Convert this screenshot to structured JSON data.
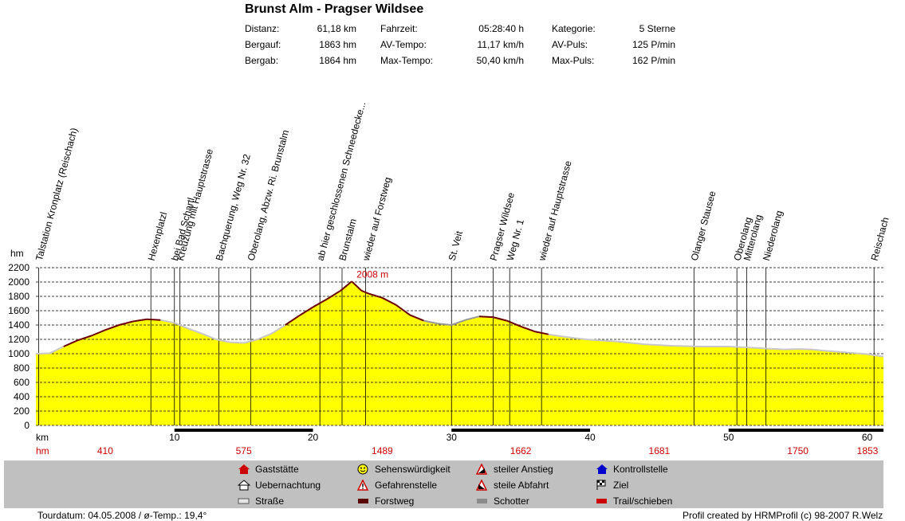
{
  "title": "Brunst Alm - Pragser Wildsee",
  "stats": [
    {
      "label": "Distanz:",
      "value": "61,18 km"
    },
    {
      "label": "Bergauf:",
      "value": "1863 hm"
    },
    {
      "label": "Bergab:",
      "value": "1864 hm"
    },
    {
      "label": "Fahrzeit:",
      "value": "05:28:40 h"
    },
    {
      "label": "AV-Tempo:",
      "value": "11,17 km/h"
    },
    {
      "label": "Max-Tempo:",
      "value": "50,40 km/h"
    },
    {
      "label": "Kategorie:",
      "value": "5 Sterne"
    },
    {
      "label": "AV-Puls:",
      "value": "125 P/min"
    },
    {
      "label": "Max-Puls:",
      "value": "162 P/min"
    }
  ],
  "chart_data": {
    "type": "area",
    "ylabel": "hm",
    "xlabel": "km",
    "ylim": [
      0,
      2200
    ],
    "xlim": [
      0,
      61.18
    ],
    "yticks": [
      "0",
      "200",
      "400",
      "600",
      "800",
      "1000",
      "1200",
      "1400",
      "1600",
      "1800",
      "2000",
      "2200"
    ],
    "xticks": [
      "10",
      "20",
      "30",
      "40",
      "50",
      "60"
    ],
    "grid": true,
    "max_label": "2008 m",
    "km_elevation_labels": [
      "410",
      "575",
      "1489",
      "1662",
      "1681",
      "1750",
      "1853"
    ],
    "profile": {
      "x": [
        0,
        1,
        2,
        3,
        4,
        5,
        6,
        7,
        8,
        9,
        10,
        11,
        12,
        13,
        14,
        15,
        16,
        17,
        18,
        19,
        20,
        21,
        22,
        22.8,
        23.5,
        24,
        25,
        26,
        27,
        28,
        29,
        30,
        31,
        32,
        33,
        34,
        35,
        36,
        37,
        38,
        39,
        40,
        42,
        44,
        46,
        48,
        50,
        51,
        52,
        53,
        54,
        55,
        56,
        57,
        58,
        59,
        60,
        61.18
      ],
      "y": [
        1000,
        1005,
        1100,
        1185,
        1250,
        1330,
        1400,
        1450,
        1480,
        1470,
        1430,
        1350,
        1280,
        1200,
        1160,
        1150,
        1200,
        1280,
        1400,
        1530,
        1650,
        1760,
        1880,
        2008,
        1880,
        1840,
        1780,
        1680,
        1540,
        1460,
        1420,
        1400,
        1470,
        1520,
        1510,
        1460,
        1380,
        1310,
        1270,
        1240,
        1215,
        1195,
        1170,
        1130,
        1110,
        1100,
        1100,
        1090,
        1080,
        1070,
        1060,
        1065,
        1060,
        1040,
        1025,
        1010,
        995,
        960
      ]
    },
    "surfaces": [
      {
        "name": "Straße",
        "color": "#c8c8c8"
      },
      {
        "name": "Forstweg",
        "color": "#6b0000"
      },
      {
        "name": "Schotter",
        "color": "#969696"
      }
    ],
    "waypoints": [
      {
        "km": 0.2,
        "label": "Talstation Kronplatz (Reischach)"
      },
      {
        "km": 8.3,
        "label": "Hexenplatzl"
      },
      {
        "km": 10.0,
        "label": "bei Bad Schartl"
      },
      {
        "km": 10.4,
        "label": "Kreuzung mit Hauptstrasse"
      },
      {
        "km": 13.2,
        "label": "Bachquerung, Weg Nr. 32"
      },
      {
        "km": 15.5,
        "label": "Oberolang, Abzw. Ri. Brunstalm"
      },
      {
        "km": 20.5,
        "label": "ab hier geschlossenen Schneedecke..."
      },
      {
        "km": 22.1,
        "label": "Brunstalm"
      },
      {
        "km": 23.8,
        "label": "wieder auf Forstweg"
      },
      {
        "km": 30.0,
        "label": "St. Veit"
      },
      {
        "km": 33.0,
        "label": "Pragser Wildsee"
      },
      {
        "km": 34.2,
        "label": "Weg Nr. 1"
      },
      {
        "km": 36.5,
        "label": "wieder auf Hauptstrasse"
      },
      {
        "km": 47.5,
        "label": "Olanger Stausee"
      },
      {
        "km": 50.6,
        "label": "Oberolang"
      },
      {
        "km": 51.3,
        "label": "Mitterolang"
      },
      {
        "km": 52.7,
        "label": "Niederolang"
      },
      {
        "km": 60.5,
        "label": "Reischach"
      }
    ]
  },
  "legend": [
    {
      "icon": "house-red-icon",
      "label": "Gaststätte"
    },
    {
      "icon": "hut-icon",
      "label": "Uebernachtung"
    },
    {
      "icon": "road-icon",
      "label": "Straße"
    },
    {
      "icon": "smiley-icon",
      "label": "Sehenswürdigkeit"
    },
    {
      "icon": "warning-icon",
      "label": "Gefahrenstelle"
    },
    {
      "icon": "forest-road-icon",
      "label": "Forstweg"
    },
    {
      "icon": "steep-up-icon",
      "label": "steiler Anstieg"
    },
    {
      "icon": "steep-down-icon",
      "label": "steile Abfahrt"
    },
    {
      "icon": "gravel-icon",
      "label": "Schotter"
    },
    {
      "icon": "checkpoint-icon",
      "label": "Kontrollstelle"
    },
    {
      "icon": "finish-flag-icon",
      "label": "Ziel"
    },
    {
      "icon": "trail-icon",
      "label": "Trail/schieben"
    }
  ],
  "footer": {
    "date": "Tourdatum: 04.05.2008  /  ø-Temp.: 19,4°",
    "credit": "Profil created by HRMProfil (c) 98-2007 R.Welz"
  },
  "colors": {
    "fill": "#ffff00",
    "grid": "#000000",
    "max_label": "#cc0000",
    "hm_row": "#cc0000"
  }
}
